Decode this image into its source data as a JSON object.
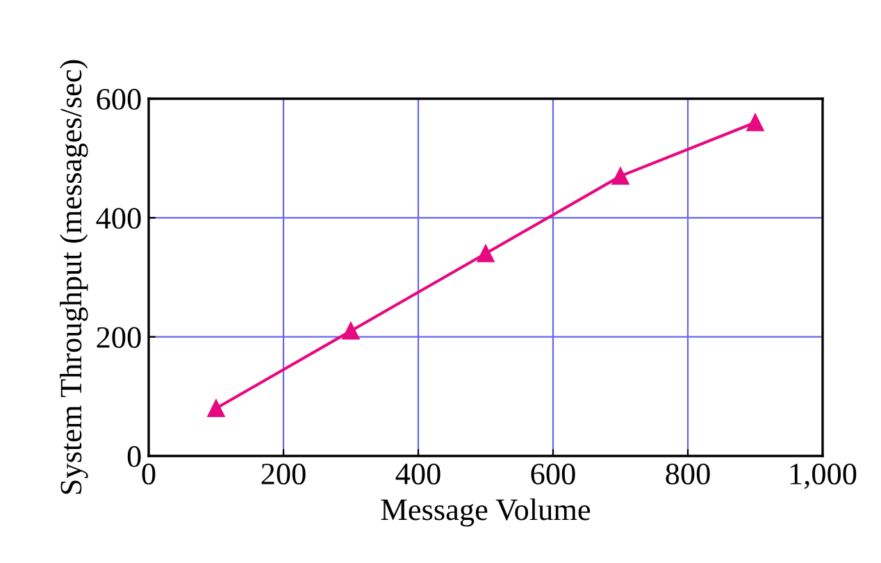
{
  "chart_data": {
    "type": "line",
    "xlabel": "Message Volume",
    "ylabel": "System Throughput (messages/sec)",
    "x": [
      100,
      300,
      500,
      700,
      900
    ],
    "series": [
      {
        "color": "#e6097f",
        "values": [
          80,
          210,
          340,
          470,
          560
        ]
      }
    ],
    "xlim": [
      0,
      1000
    ],
    "xticks": [
      0,
      200,
      400,
      600,
      800,
      {
        "value": 1000,
        "label": "1,000"
      }
    ],
    "ylim": [
      0,
      600
    ],
    "yticks": [
      0,
      200,
      400,
      600
    ],
    "grid": true,
    "marker": "triangle",
    "line_style": "solid"
  }
}
